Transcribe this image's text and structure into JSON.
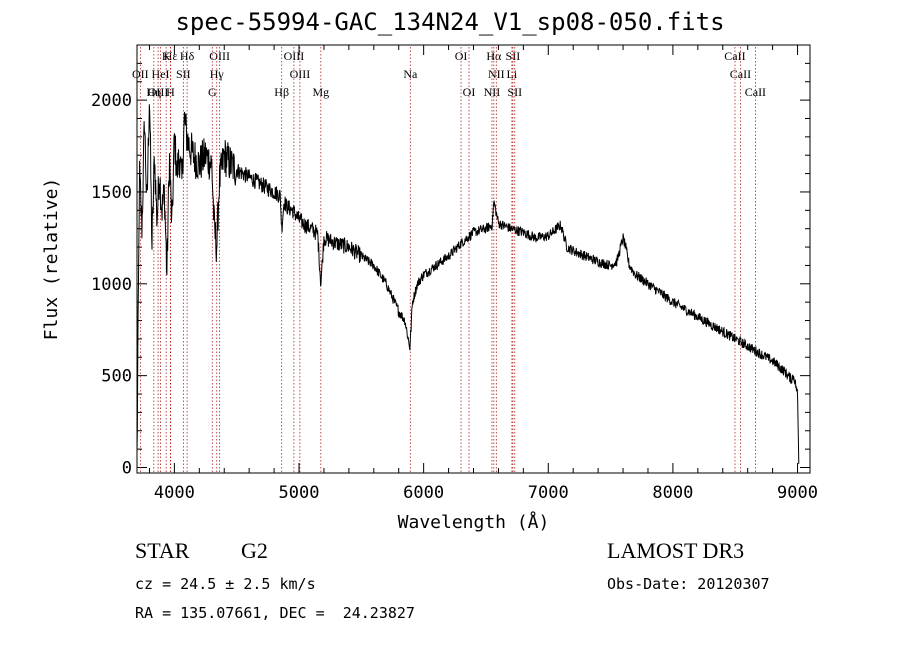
{
  "chart_data": {
    "type": "line",
    "title": "spec-55994-GAC_134N24_V1_sp08-050.fits",
    "xlabel": "Wavelength (Å)",
    "ylabel": "Flux (relative)",
    "xlim": [
      3700,
      9100
    ],
    "ylim": [
      -30,
      2300
    ],
    "xticks": [
      4000,
      5000,
      6000,
      7000,
      8000,
      9000
    ],
    "yticks": [
      0,
      500,
      1000,
      1500,
      2000
    ],
    "series": [
      {
        "name": "spectrum",
        "x": [
          3700,
          3720,
          3740,
          3760,
          3780,
          3800,
          3820,
          3840,
          3860,
          3880,
          3900,
          3920,
          3940,
          3960,
          3980,
          4000,
          4020,
          4040,
          4060,
          4080,
          4100,
          4120,
          4150,
          4200,
          4250,
          4300,
          4320,
          4340,
          4360,
          4400,
          4450,
          4500,
          4550,
          4600,
          4650,
          4700,
          4750,
          4800,
          4850,
          4861,
          4880,
          4900,
          4950,
          5000,
          5050,
          5100,
          5150,
          5175,
          5200,
          5300,
          5400,
          5500,
          5600,
          5700,
          5800,
          5850,
          5890,
          5910,
          5950,
          6000,
          6100,
          6200,
          6300,
          6400,
          6500,
          6550,
          6563,
          6600,
          6700,
          6800,
          6900,
          7000,
          7100,
          7150,
          7200,
          7300,
          7400,
          7500,
          7550,
          7600,
          7620,
          7650,
          7700,
          7800,
          7900,
          8000,
          8100,
          8200,
          8300,
          8400,
          8500,
          8600,
          8700,
          8800,
          8900,
          8950,
          8970,
          9000,
          9010
        ],
        "y": [
          40,
          1600,
          1300,
          1900,
          1400,
          2050,
          1200,
          1700,
          1350,
          1600,
          1400,
          1500,
          1050,
          1700,
          1300,
          1800,
          1600,
          1700,
          1550,
          1900,
          1800,
          1750,
          1700,
          1650,
          1700,
          1650,
          1300,
          1200,
          1550,
          1700,
          1650,
          1620,
          1600,
          1580,
          1560,
          1540,
          1520,
          1500,
          1480,
          1300,
          1450,
          1420,
          1400,
          1350,
          1320,
          1300,
          1270,
          1000,
          1250,
          1220,
          1200,
          1150,
          1100,
          1000,
          850,
          800,
          650,
          900,
          1000,
          1050,
          1100,
          1150,
          1220,
          1280,
          1300,
          1320,
          1450,
          1330,
          1300,
          1280,
          1250,
          1260,
          1320,
          1200,
          1180,
          1150,
          1120,
          1100,
          1120,
          1250,
          1200,
          1100,
          1050,
          1000,
          950,
          900,
          860,
          820,
          780,
          740,
          700,
          660,
          620,
          580,
          520,
          480,
          500,
          400,
          30
        ]
      }
    ],
    "lines": [
      {
        "label": "Hε",
        "wave": 3970,
        "row": 0
      },
      {
        "label": "K",
        "wave": 3934,
        "row": 0
      },
      {
        "label": "Hδ",
        "wave": 4102,
        "row": 0
      },
      {
        "label": "OIII",
        "wave": 4363,
        "row": 0
      },
      {
        "label": "OIII",
        "wave": 4959,
        "row": 0
      },
      {
        "label": "OI",
        "wave": 6300,
        "row": 0
      },
      {
        "label": "Hα",
        "wave": 6563,
        "row": 0
      },
      {
        "label": "SII",
        "wave": 6716,
        "row": 0
      },
      {
        "label": "CaII",
        "wave": 8498,
        "row": 0
      },
      {
        "label": "OII",
        "wave": 3727,
        "row": 1
      },
      {
        "label": "HeI",
        "wave": 3889,
        "row": 1
      },
      {
        "label": "SII",
        "wave": 4072,
        "row": 1
      },
      {
        "label": "Hγ",
        "wave": 4340,
        "row": 1
      },
      {
        "label": "OIII",
        "wave": 5007,
        "row": 1
      },
      {
        "label": "Na",
        "wave": 5893,
        "row": 1
      },
      {
        "label": "NII",
        "wave": 6583,
        "row": 1
      },
      {
        "label": "Li",
        "wave": 6708,
        "row": 1
      },
      {
        "label": "CaII",
        "wave": 8542,
        "row": 1
      },
      {
        "label": "OIII",
        "wave": 3869,
        "row": 2
      },
      {
        "label": "Hη",
        "wave": 3835,
        "row": 2
      },
      {
        "label": "H",
        "wave": 3968,
        "row": 2
      },
      {
        "label": "G",
        "wave": 4304,
        "row": 2
      },
      {
        "label": "Hβ",
        "wave": 4861,
        "row": 2
      },
      {
        "label": "Mg",
        "wave": 5175,
        "row": 2
      },
      {
        "label": "OI",
        "wave": 6364,
        "row": 2
      },
      {
        "label": "NII",
        "wave": 6548,
        "row": 2
      },
      {
        "label": "SII",
        "wave": 6731,
        "row": 2
      },
      {
        "label": "CaII",
        "wave": 8662,
        "row": 2
      }
    ]
  },
  "info": {
    "object_class": "STAR",
    "subclass": "G2",
    "survey": "LAMOST DR3",
    "redshift": "cz = 24.5 ± 2.5 km/s",
    "obs_date": "Obs-Date: 20120307",
    "coords": "RA = 135.07661, DEC =  24.23827"
  }
}
